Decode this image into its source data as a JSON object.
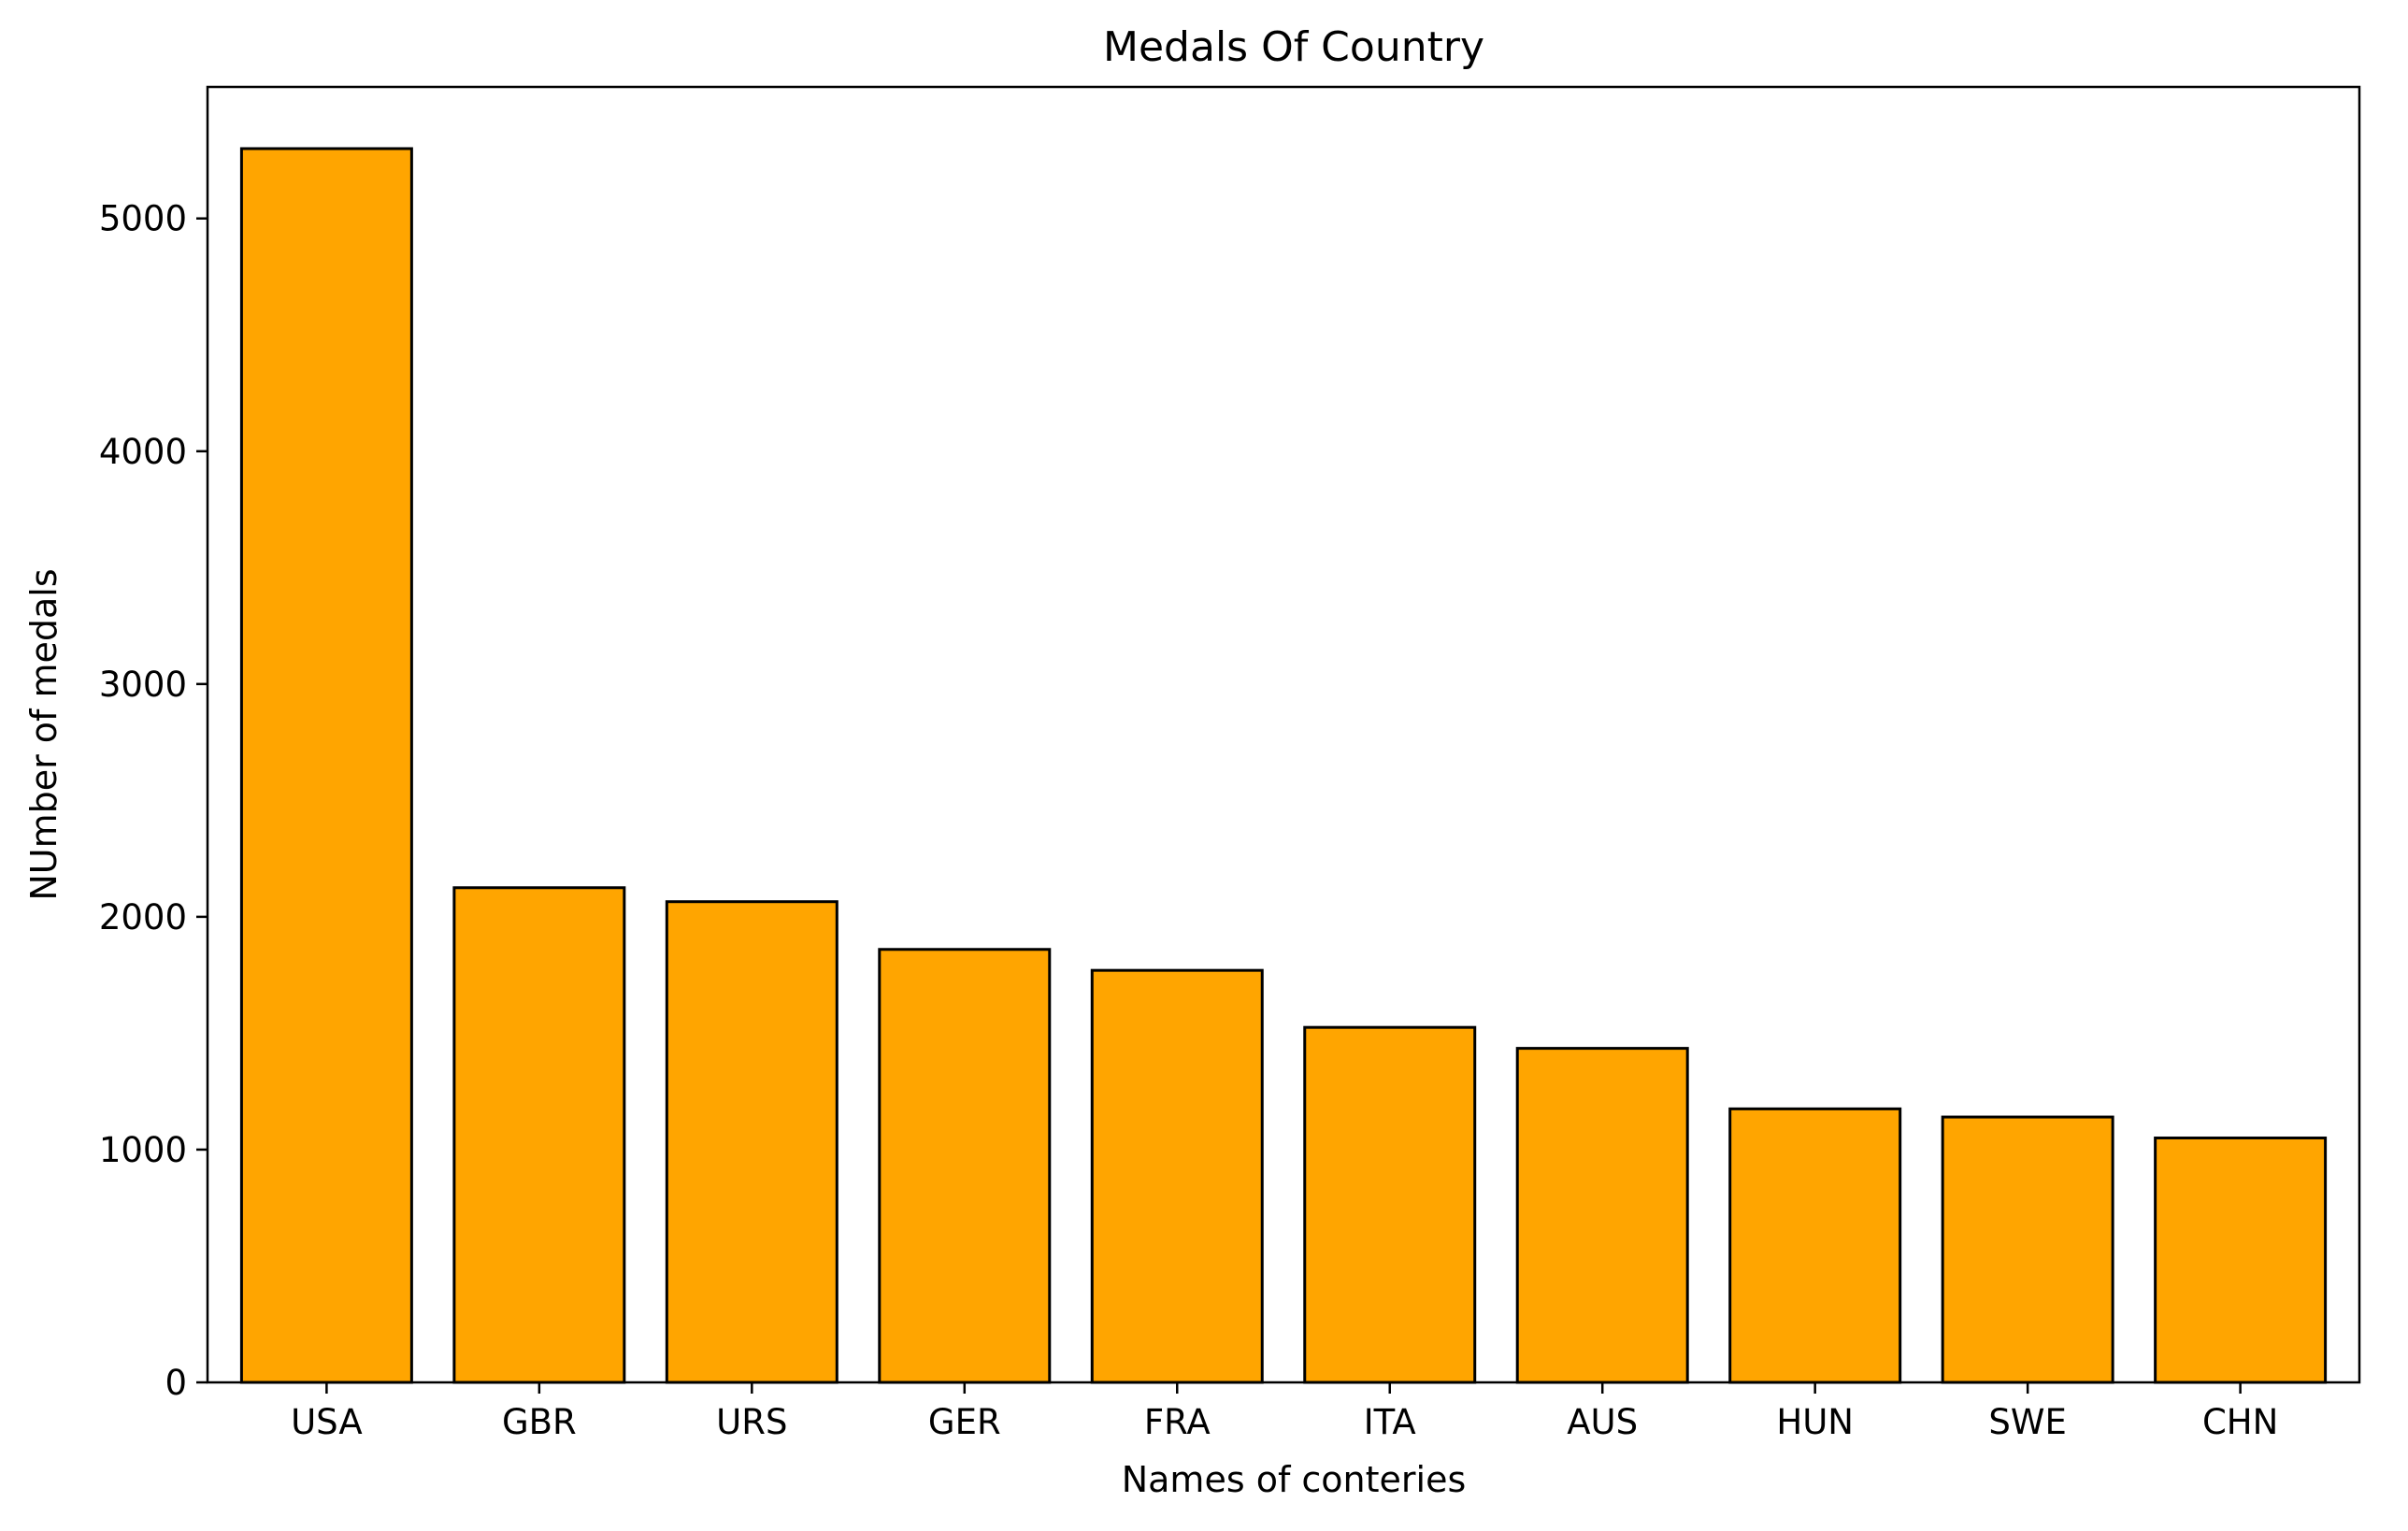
{
  "chart_data": {
    "type": "bar",
    "title": "Medals Of Country",
    "xlabel": "Names of conteries",
    "ylabel": "NUmber of medals",
    "categories": [
      "USA",
      "GBR",
      "URS",
      "GER",
      "FRA",
      "ITA",
      "AUS",
      "HUN",
      "SWE",
      "CHN"
    ],
    "values": [
      5300,
      2125,
      2065,
      1860,
      1770,
      1525,
      1435,
      1175,
      1140,
      1050
    ],
    "yticks": [
      0,
      1000,
      2000,
      3000,
      4000,
      5000
    ],
    "ylim": [
      0,
      5565
    ],
    "grid": false,
    "legend": "none",
    "colors": {
      "bar_fill": "#FFA500",
      "bar_edge": "#000000",
      "axis": "#000000",
      "background": "#FFFFFF"
    }
  }
}
